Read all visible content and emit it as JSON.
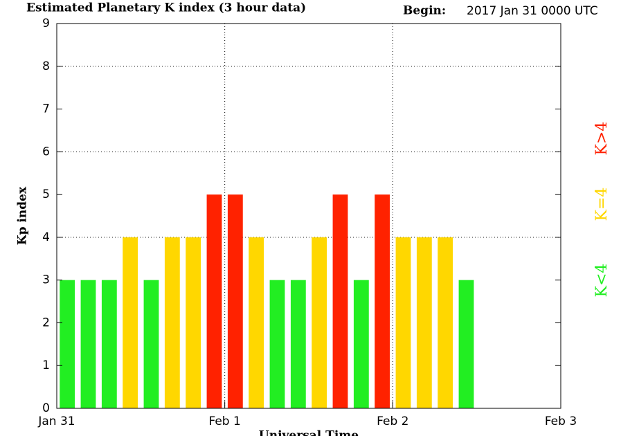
{
  "chart_data": {
    "type": "bar",
    "title": "Estimated Planetary K index (3 hour data)",
    "begin_label": "Begin:",
    "begin_value": "2017 Jan 31 0000 UTC",
    "ylabel": "Kp index",
    "xlabel": "Universal Time",
    "x": [
      0,
      3,
      6,
      9,
      12,
      15,
      18,
      21,
      24,
      27,
      30,
      33,
      36,
      39,
      42,
      45,
      48,
      51,
      54,
      57
    ],
    "bar_width": 3,
    "values": [
      3,
      3,
      3,
      4,
      3,
      4,
      4,
      5,
      5,
      4,
      3,
      3,
      4,
      5,
      3,
      5,
      4,
      4,
      4,
      3
    ],
    "colors": [
      "#22ee22",
      "#22ee22",
      "#22ee22",
      "#ffd700",
      "#22ee22",
      "#ffd700",
      "#ffd700",
      "#ff2200",
      "#ff2200",
      "#ffd700",
      "#22ee22",
      "#22ee22",
      "#ffd700",
      "#ff2200",
      "#22ee22",
      "#ff2200",
      "#ffd700",
      "#ffd700",
      "#ffd700",
      "#22ee22"
    ],
    "xlim": [
      0,
      72
    ],
    "xticks": [
      {
        "value": 0,
        "label": "Jan 31"
      },
      {
        "value": 24,
        "label": "Feb 1"
      },
      {
        "value": 48,
        "label": "Feb 2"
      },
      {
        "value": 72,
        "label": "Feb 3"
      }
    ],
    "xgrid": [
      24,
      48
    ],
    "ylim": [
      0,
      9
    ],
    "yticks": [
      0,
      1,
      2,
      3,
      4,
      5,
      6,
      7,
      8,
      9
    ],
    "ygrid": [
      4,
      6,
      8
    ],
    "legend": [
      {
        "label": "K<4",
        "color": "#22ee22"
      },
      {
        "label": "K=4",
        "color": "#ffd700"
      },
      {
        "label": "K>4",
        "color": "#ff2200"
      }
    ]
  }
}
